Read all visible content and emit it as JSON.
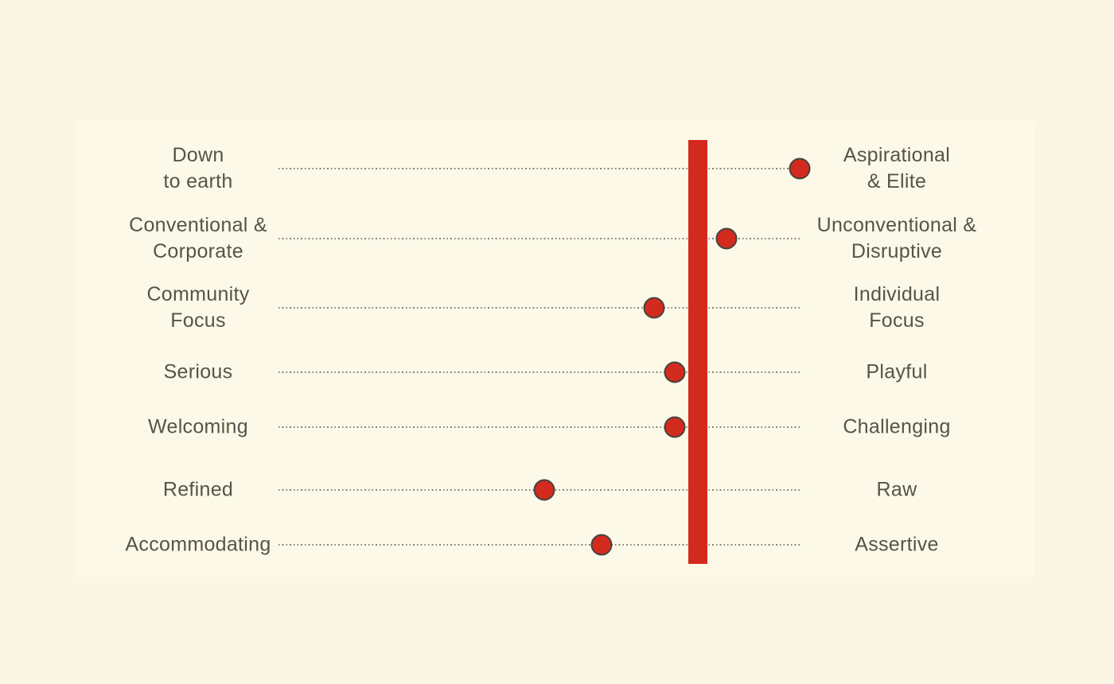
{
  "chart_data": {
    "type": "scatter",
    "subtype": "spectrum-slider-infographic",
    "description": "Seven horizontal brand-personality spectra. Each dotted axis runs from a left pole label to a right pole label; a red dot marks the position on each spectrum (0 = left pole, 100 = right pole). A thick red vertical bar crosses all rows near the right side as a reference marker.",
    "scale": {
      "min": 0,
      "max": 100
    },
    "threshold_bar_value": 80,
    "rows": [
      {
        "left": "Down\nto earth",
        "right": "Aspirational\n& Elite",
        "value": 100
      },
      {
        "left": "Conventional &\nCorporate",
        "right": "Unconventional &\nDisruptive",
        "value": 86
      },
      {
        "left": "Community\nFocus",
        "right": "Individual\nFocus",
        "value": 72
      },
      {
        "left": "Serious",
        "right": "Playful",
        "value": 76
      },
      {
        "left": "Welcoming",
        "right": "Challenging",
        "value": 76
      },
      {
        "left": "Refined",
        "right": "Raw",
        "value": 51
      },
      {
        "left": "Accommodating",
        "right": "Assertive",
        "value": 62
      }
    ],
    "colors": {
      "dot_fill": "#d32a1e",
      "dot_outline": "#46433e",
      "threshold_bar": "#d32a1e",
      "dotted_line": "#837f77",
      "label_text": "#57534c",
      "background_outer": "#faf5e4",
      "background_panel": "#fdf9e8"
    },
    "layout_hints": {
      "grid": "dotted horizontal guide per row",
      "legend": "none",
      "axis_labels": "pole labels on both ends of each row"
    }
  }
}
